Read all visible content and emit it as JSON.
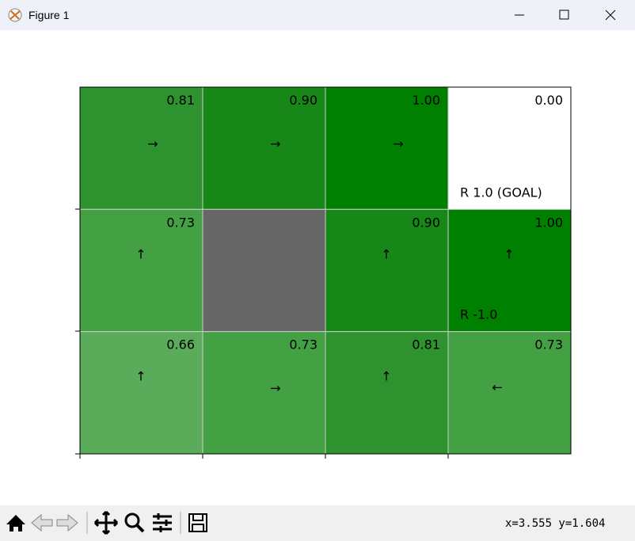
{
  "window": {
    "title": "Figure 1"
  },
  "grid": {
    "rows": [
      [
        {
          "value": "0.81",
          "arrow": "→",
          "color": "#2e932e"
        },
        {
          "value": "0.90",
          "arrow": "→",
          "color": "#178717"
        },
        {
          "value": "1.00",
          "arrow": "→",
          "color": "#008000"
        },
        {
          "value": "0.00",
          "color": "#ffffff",
          "reward": "R 1.0 (GOAL)"
        }
      ],
      [
        {
          "value": "0.73",
          "arrow": "↑",
          "color": "#43a043"
        },
        {
          "color": "#666666"
        },
        {
          "value": "0.90",
          "arrow": "↑",
          "color": "#178717"
        },
        {
          "value": "1.00",
          "arrow": "↑",
          "color": "#008000",
          "reward": "R -1.0"
        }
      ],
      [
        {
          "value": "0.66",
          "arrow": "↑",
          "color": "#5aab5a"
        },
        {
          "value": "0.73",
          "arrow": "→",
          "color": "#43a043"
        },
        {
          "value": "0.81",
          "arrow": "↑",
          "color": "#2e932e"
        },
        {
          "value": "0.73",
          "arrow": "←",
          "color": "#43a043"
        }
      ]
    ]
  },
  "status": "x=3.555 y=1.604"
}
